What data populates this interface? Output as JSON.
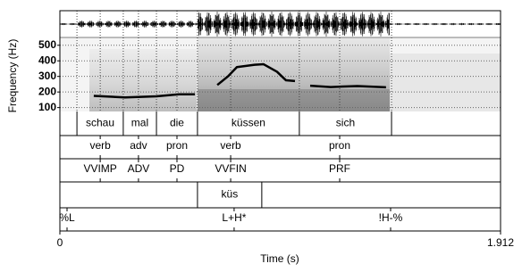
{
  "chart_data": {
    "type": "line",
    "x_label": "Time (s)",
    "y_label": "Frequency (Hz)",
    "xlim": [
      0,
      1.912
    ],
    "xticks": [
      0,
      1.912
    ],
    "ylim": [
      75,
      550
    ],
    "yticks": [
      100,
      200,
      300,
      400,
      500
    ],
    "grid": true,
    "series": [
      {
        "color": "#000000",
        "x": [
          0.147,
          0.283,
          0.419,
          0.516,
          0.586,
          null,
          0.683,
          0.729,
          0.768,
          0.845,
          0.884,
          0.942,
          0.981,
          1.02,
          null,
          1.086,
          1.175,
          1.291,
          1.415
        ],
        "values": [
          175,
          165,
          172,
          185,
          185,
          null,
          245,
          300,
          360,
          375,
          378,
          330,
          275,
          270,
          null,
          240,
          232,
          238,
          230
        ]
      }
    ],
    "tiers": [
      {
        "kind": "interval",
        "boundaries": [
          0,
          0.074,
          0.275,
          0.419,
          0.597,
          1.039,
          1.439,
          1.912
        ],
        "labels": [
          null,
          "schau",
          "mal",
          "die",
          "küssen",
          "sich",
          null
        ]
      },
      {
        "kind": "point",
        "times": [
          0.175,
          0.341,
          0.508,
          0.741,
          1.214
        ],
        "labels": [
          "verb",
          "adv",
          "pron",
          "verb",
          "pron"
        ]
      },
      {
        "kind": "point",
        "times": [
          0.175,
          0.341,
          0.508,
          0.741,
          1.214
        ],
        "labels": [
          "VVIMP",
          "ADV",
          "PD",
          "VVFIN",
          "PRF"
        ]
      },
      {
        "kind": "interval",
        "boundaries": [
          0,
          0.597,
          0.876,
          1.912
        ],
        "labels": [
          null,
          "küs",
          null
        ]
      },
      {
        "kind": "point",
        "times": [
          0.031,
          0.756,
          1.435
        ],
        "labels": [
          "%L",
          "L+H*",
          "!H-%"
        ]
      }
    ]
  }
}
